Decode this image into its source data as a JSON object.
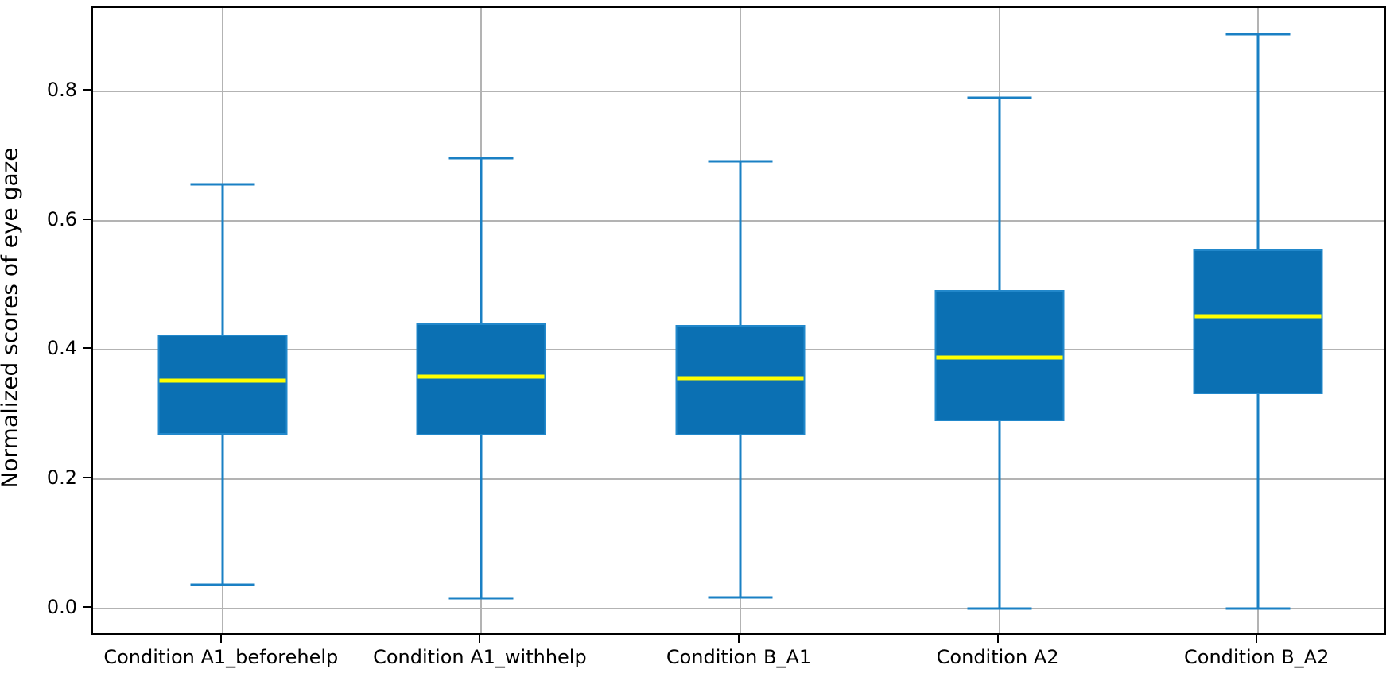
{
  "chart_data": {
    "type": "boxplot",
    "title": "",
    "xlabel": "",
    "ylabel": "Normalized scores of eye gaze",
    "yticks": [
      0.0,
      0.2,
      0.4,
      0.6,
      0.8
    ],
    "ytick_labels": [
      "0.0",
      "0.2",
      "0.4",
      "0.6",
      "0.8"
    ],
    "ylim": [
      -0.0435,
      0.929
    ],
    "grid": true,
    "legend": false,
    "categories": [
      "Condition A1_beforehelp",
      "Condition A1_withhelp",
      "Condition B_A1",
      "Condition A2",
      "Condition B_A2"
    ],
    "boxes": [
      {
        "label": "Condition A1_beforehelp",
        "whisker_low": 0.037,
        "q1": 0.269,
        "median": 0.352,
        "q3": 0.424,
        "whisker_high": 0.656
      },
      {
        "label": "Condition A1_withhelp",
        "whisker_low": 0.015,
        "q1": 0.267,
        "median": 0.358,
        "q3": 0.441,
        "whisker_high": 0.697
      },
      {
        "label": "Condition B_A1",
        "whisker_low": 0.017,
        "q1": 0.268,
        "median": 0.356,
        "q3": 0.438,
        "whisker_high": 0.692
      },
      {
        "label": "Condition A2",
        "whisker_low": 0.0,
        "q1": 0.29,
        "median": 0.388,
        "q3": 0.492,
        "whisker_high": 0.79
      },
      {
        "label": "Condition B_A2",
        "whisker_low": 0.0,
        "q1": 0.331,
        "median": 0.452,
        "q3": 0.555,
        "whisker_high": 0.888
      }
    ],
    "colors": {
      "box_fill": "#0b70b3",
      "box_edge": "#2288cb",
      "whisker": "#1a80c4",
      "cap": "#1a80c4",
      "median": "#ffff00",
      "grid": "#b3b3b3",
      "spine": "#000000"
    }
  }
}
